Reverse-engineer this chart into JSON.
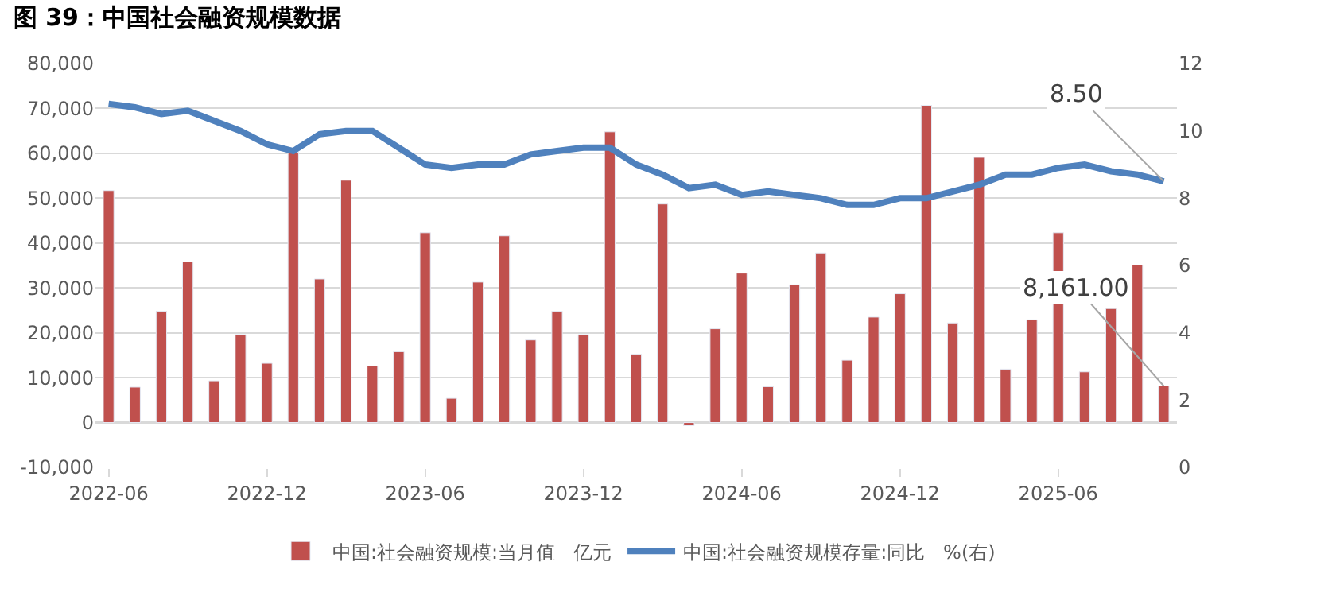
{
  "chart_data": {
    "type": "bar",
    "title": "图 39：中国社会融资规模数据",
    "categories": [
      "2022-06",
      null,
      null,
      null,
      null,
      null,
      "2022-12",
      null,
      null,
      null,
      null,
      null,
      "2023-06",
      null,
      null,
      null,
      null,
      null,
      "2023-12",
      null,
      null,
      null,
      null,
      null,
      "2024-06",
      null,
      null,
      null,
      null,
      null,
      "2024-12",
      null,
      null,
      null,
      null,
      null,
      "2025-06",
      null,
      null,
      null,
      null
    ],
    "series": [
      {
        "name": "中国:社会融资规模:当月值   亿元",
        "color": "#c0504d",
        "values": [
          51700,
          7900,
          24800,
          35800,
          9300,
          19600,
          13200,
          60200,
          32000,
          54000,
          12600,
          15800,
          42300,
          5400,
          31300,
          41600,
          18400,
          24800,
          19600,
          64800,
          15200,
          48700,
          -700,
          20900,
          33300,
          8000,
          30700,
          37800,
          13900,
          23500,
          28700,
          70700,
          22200,
          59100,
          11900,
          22900,
          42300,
          11300,
          25400,
          35100,
          8161
        ],
        "value_labels": [
          null,
          null,
          null,
          null,
          null,
          null,
          null,
          null,
          null,
          null,
          null,
          null,
          null,
          null,
          null,
          null,
          null,
          null,
          null,
          null,
          null,
          null,
          null,
          null,
          null,
          null,
          null,
          null,
          null,
          null,
          null,
          null,
          null,
          null,
          null,
          null,
          null,
          null,
          null,
          null,
          "8,161.00"
        ]
      },
      {
        "name": "中国:社会融资规模存量:同比   %(右)",
        "type": "line",
        "axis": "y2",
        "color": "#4f81bd",
        "values": [
          10.8,
          10.7,
          10.5,
          10.6,
          10.3,
          10.0,
          9.6,
          9.4,
          9.9,
          10.0,
          10.0,
          9.5,
          9.0,
          8.9,
          9.0,
          9.0,
          9.3,
          9.4,
          9.5,
          9.5,
          9.0,
          8.7,
          8.3,
          8.4,
          8.1,
          8.2,
          8.1,
          8.0,
          7.8,
          7.8,
          8.0,
          8.0,
          8.2,
          8.4,
          8.7,
          8.7,
          8.9,
          9.0,
          8.8,
          8.7,
          8.5
        ],
        "value_labels": [
          null,
          null,
          null,
          null,
          null,
          null,
          null,
          null,
          null,
          null,
          null,
          null,
          null,
          null,
          null,
          null,
          null,
          null,
          null,
          null,
          null,
          null,
          null,
          null,
          null,
          null,
          null,
          null,
          null,
          null,
          null,
          null,
          null,
          null,
          null,
          null,
          null,
          null,
          null,
          null,
          "8.50"
        ]
      }
    ],
    "ylim": [
      -10000,
      80000
    ],
    "yticks": [
      {
        "value": -10000,
        "label": "-10,000"
      },
      0,
      {
        "value": 10000,
        "label": "10,000"
      },
      {
        "value": 20000,
        "label": "20,000"
      },
      {
        "value": 30000,
        "label": "30,000"
      },
      {
        "value": 40000,
        "label": "40,000"
      },
      {
        "value": 50000,
        "label": "50,000"
      },
      {
        "value": 60000,
        "label": "60,000"
      },
      {
        "value": 70000,
        "label": "70,000"
      },
      {
        "value": 80000,
        "label": "80,000"
      }
    ],
    "y2lim": [
      0,
      12
    ],
    "y2ticks": [
      0,
      2,
      4,
      6,
      8,
      10,
      12
    ],
    "grid": "y",
    "legend": "bottom",
    "marker": "none",
    "line_style": "solid"
  }
}
